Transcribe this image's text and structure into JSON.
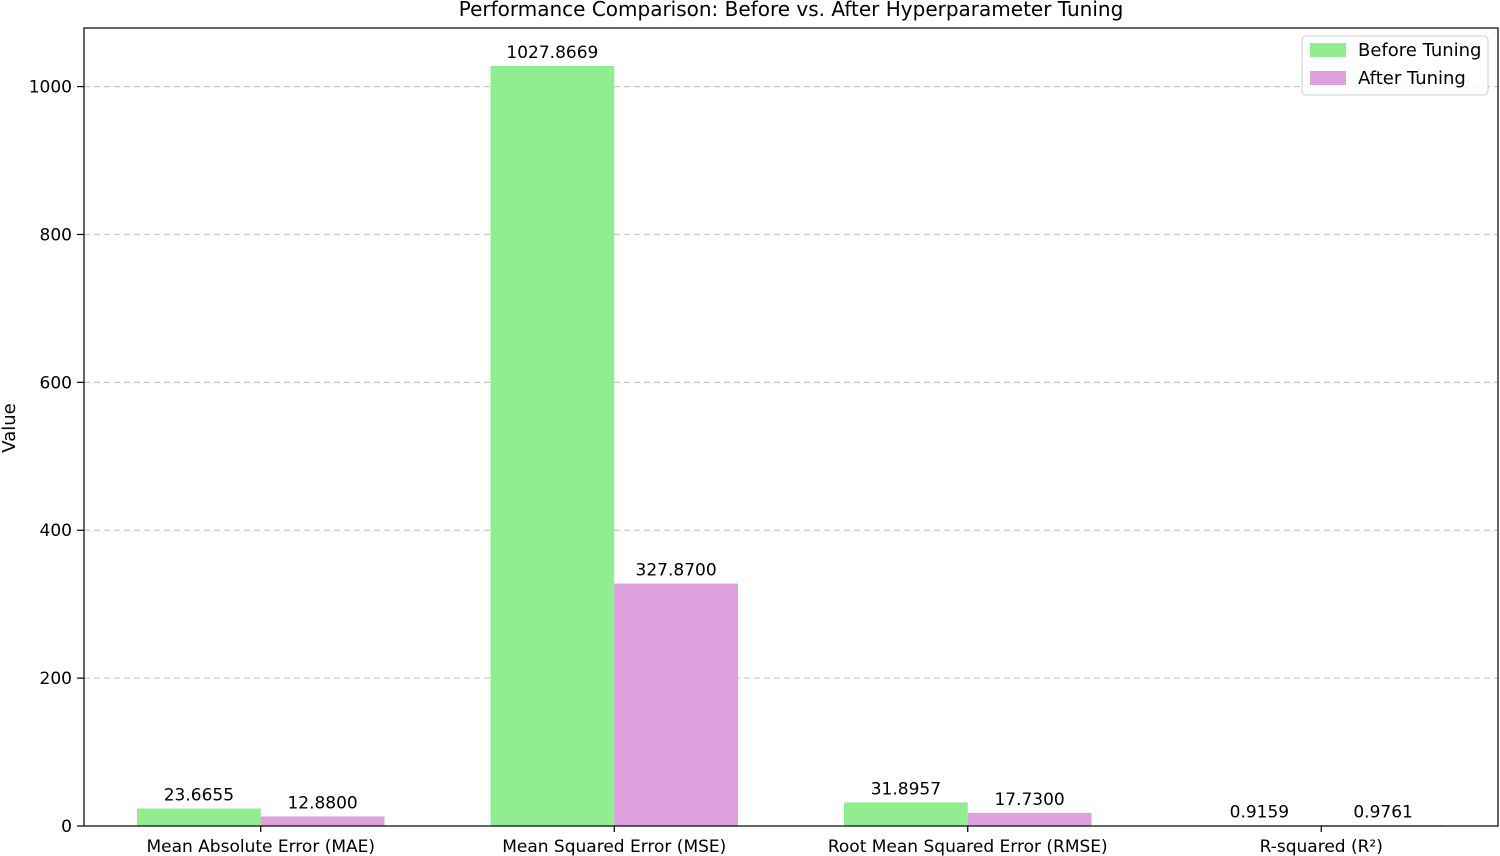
{
  "chart_data": {
    "type": "bar",
    "title": "Performance Comparison: Before vs. After Hyperparameter Tuning",
    "xlabel": "",
    "ylabel": "Value",
    "categories": [
      "Mean Absolute Error (MAE)",
      "Mean Squared Error (MSE)",
      "Root Mean Squared Error (RMSE)",
      "R-squared (R²)"
    ],
    "series": [
      {
        "name": "Before Tuning",
        "color": "#90ee90",
        "values": [
          23.6655,
          1027.8669,
          31.8957,
          0.9159
        ],
        "labels": [
          "23.6655",
          "1027.8669",
          "31.8957",
          "0.9159"
        ]
      },
      {
        "name": "After Tuning",
        "color": "#dda0dd",
        "values": [
          12.88,
          327.87,
          17.73,
          0.9761
        ],
        "labels": [
          "12.8800",
          "327.8700",
          "17.7300",
          "0.9761"
        ]
      }
    ],
    "ylim": [
      0,
      1079.26
    ],
    "yticks": [
      0,
      200,
      400,
      600,
      800,
      1000
    ],
    "grid": "y-dashed",
    "legend": "top-right"
  }
}
